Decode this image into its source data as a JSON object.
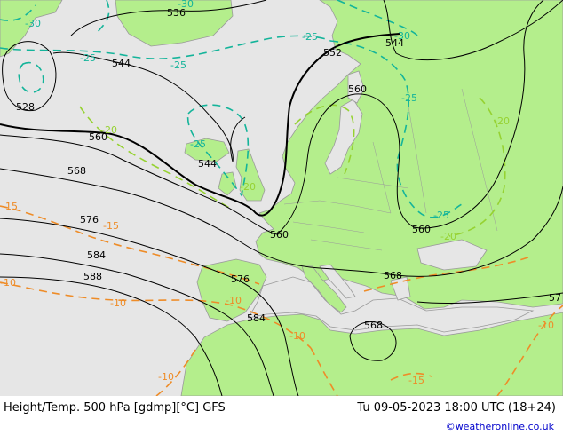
{
  "footer": {
    "title": "Height/Temp. 500 hPa [gdmp][°C] GFS",
    "valid_time": "Tu 09-05-2023 18:00 UTC (18+24)",
    "credit": "©weatheronline.co.uk"
  },
  "colors": {
    "sea": "#e6e6e6",
    "land": "#b4ee8c",
    "height_contour": "#000000",
    "temp_cold": "#14b49a",
    "temp_mid": "#96d232",
    "temp_warm": "#ee8c28"
  },
  "map": {
    "height_labels": [
      "536",
      "544",
      "544",
      "544",
      "552",
      "560",
      "560",
      "560",
      "560",
      "528",
      "568",
      "568",
      "568",
      "576",
      "576",
      "584",
      "584",
      "588",
      "57"
    ],
    "temp_labels": [
      "-30",
      "-30",
      "-30",
      "-25",
      "-25",
      "-25",
      "-25",
      "-25",
      "-25",
      "-20",
      "-20",
      "-20",
      "-20",
      "-15",
      "-15",
      "-15",
      "-10",
      "-10",
      "-10",
      "-10",
      "-10",
      "-10"
    ]
  }
}
